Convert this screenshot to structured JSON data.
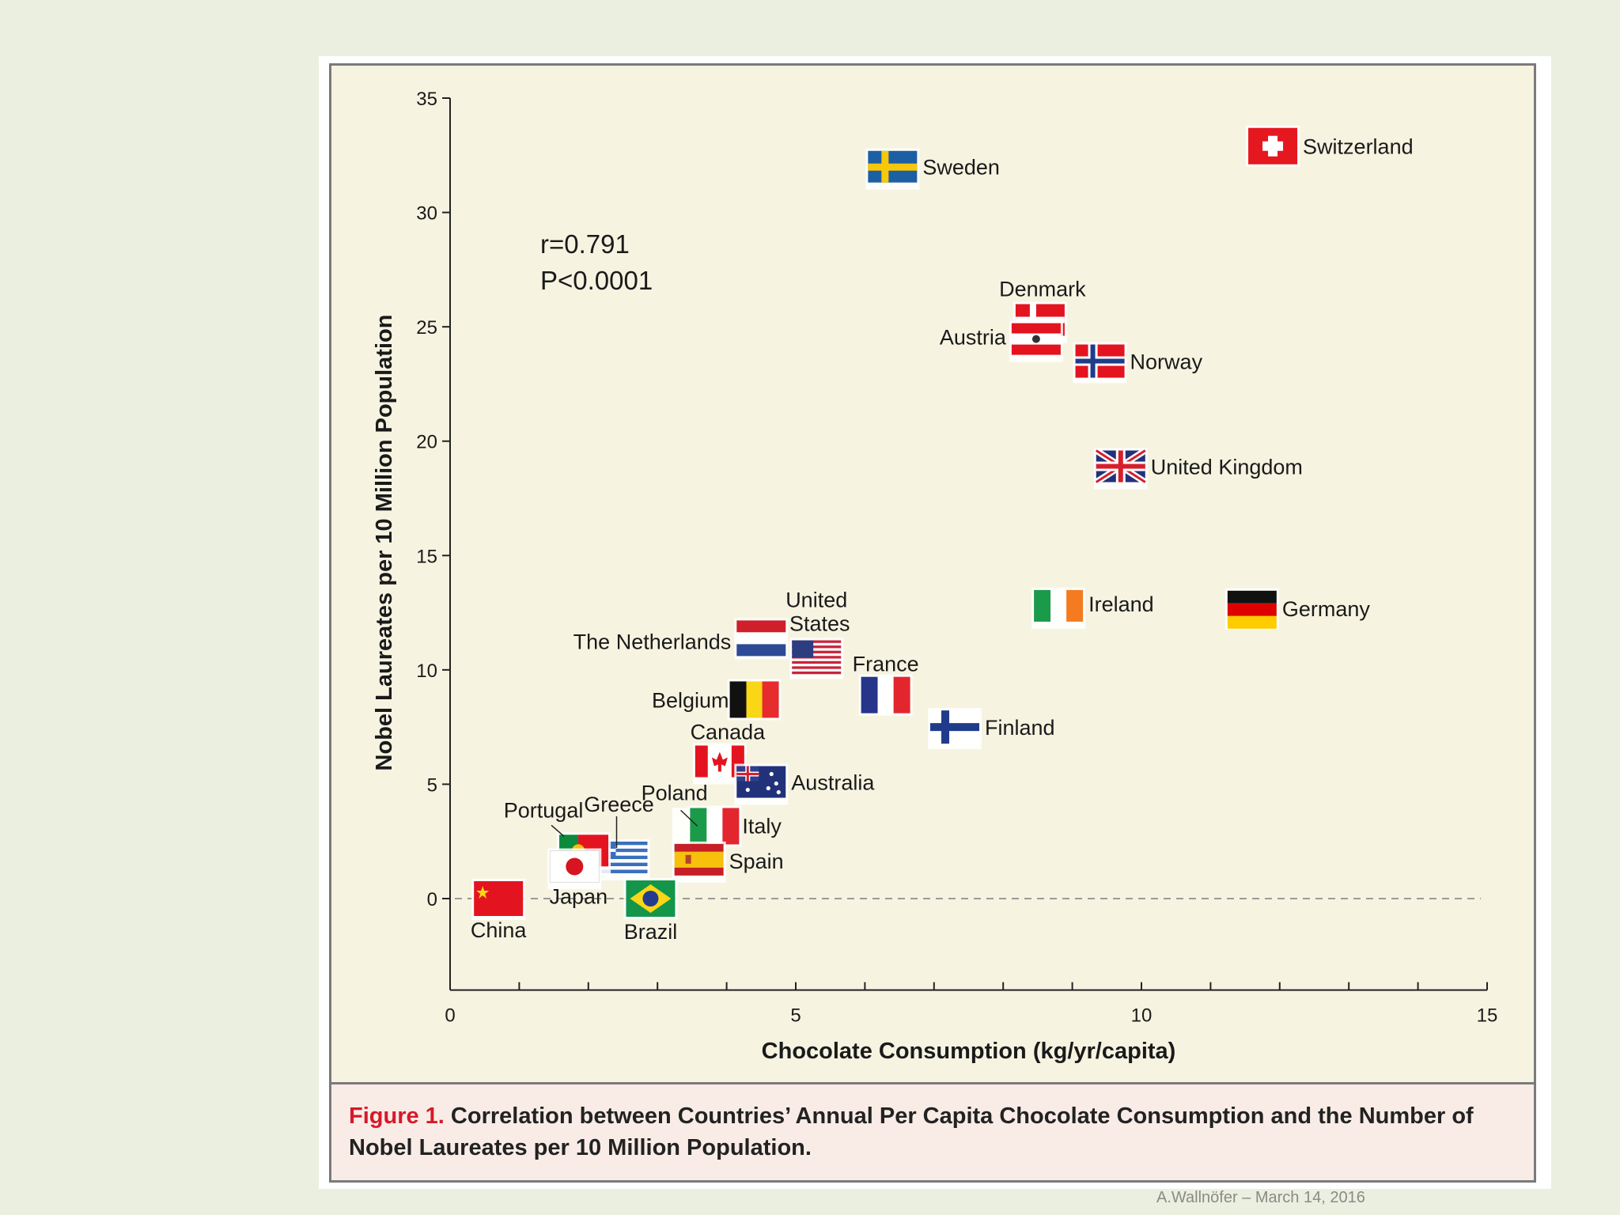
{
  "chart_data": {
    "type": "scatter",
    "title": "",
    "xlabel": "Chocolate Consumption (kg/yr/capita)",
    "ylabel": "Nobel Laureates per 10 Million Population",
    "xlim": [
      0,
      15
    ],
    "ylim": [
      -4,
      35
    ],
    "xticks": [
      0,
      5,
      10,
      15
    ],
    "yticks": [
      0,
      5,
      10,
      15,
      20,
      25,
      30,
      35
    ],
    "annotations": [
      "r=0.791",
      "P<0.0001"
    ],
    "reference_line": {
      "y": 0,
      "style": "dashed"
    },
    "points": [
      {
        "country": "Switzerland",
        "x": 11.9,
        "y": 32.9
      },
      {
        "country": "Sweden",
        "x": 6.4,
        "y": 32.0
      },
      {
        "country": "Denmark",
        "x": 8.5,
        "y": 25.3
      },
      {
        "country": "Austria",
        "x": 8.5,
        "y": 24.5
      },
      {
        "country": "Norway",
        "x": 9.4,
        "y": 23.5
      },
      {
        "country": "United Kingdom",
        "x": 9.7,
        "y": 18.9
      },
      {
        "country": "Ireland",
        "x": 8.8,
        "y": 12.8
      },
      {
        "country": "Germany",
        "x": 11.6,
        "y": 12.7
      },
      {
        "country": "United States",
        "x": 5.3,
        "y": 10.6
      },
      {
        "country": "The Netherlands",
        "x": 4.5,
        "y": 11.4
      },
      {
        "country": "France",
        "x": 6.3,
        "y": 8.9
      },
      {
        "country": "Belgium",
        "x": 4.4,
        "y": 8.7
      },
      {
        "country": "Finland",
        "x": 7.3,
        "y": 7.5
      },
      {
        "country": "Canada",
        "x": 3.9,
        "y": 6.0
      },
      {
        "country": "Australia",
        "x": 4.5,
        "y": 5.1
      },
      {
        "country": "Poland",
        "x": 3.6,
        "y": 3.1
      },
      {
        "country": "Italy",
        "x": 3.7,
        "y": 3.2
      },
      {
        "country": "Spain",
        "x": 3.6,
        "y": 1.7
      },
      {
        "country": "Greece",
        "x": 2.5,
        "y": 1.8
      },
      {
        "country": "Portugal",
        "x": 1.9,
        "y": 2.1
      },
      {
        "country": "Japan",
        "x": 1.8,
        "y": 1.4
      },
      {
        "country": "Brazil",
        "x": 2.9,
        "y": 0.0
      },
      {
        "country": "China",
        "x": 0.7,
        "y": 0.0
      }
    ]
  },
  "caption": {
    "label": "Figure 1.",
    "text": "Correlation between Countries’ Annual Per Capita Chocolate Consumption and the Number of Nobel Laureates per 10 Million Population."
  },
  "footer": "A.Wallnöfer – March 14, 2016",
  "colors": {
    "figure_background": "#f6f3e1",
    "caption_background": "#f9ece6",
    "caption_label": "#d6192b",
    "slide_background": "#ebefdf"
  }
}
